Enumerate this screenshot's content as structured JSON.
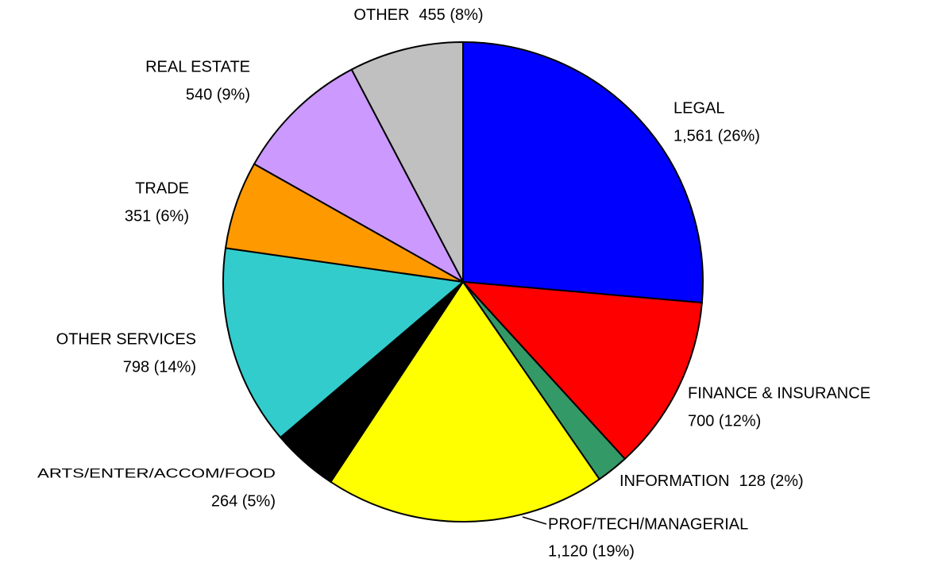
{
  "chart_data": {
    "type": "pie",
    "categories": [
      "LEGAL",
      "FINANCE & INSURANCE",
      "INFORMATION",
      "PROF/TECH/MANAGERIAL",
      "ARTS/ENTER/ACCOM/FOOD",
      "OTHER SERVICES",
      "TRADE",
      "REAL ESTATE",
      "OTHER"
    ],
    "values": [
      1561,
      700,
      128,
      1120,
      264,
      798,
      351,
      540,
      455
    ],
    "value_labels": [
      "1,561 (26%)",
      "700 (12%)",
      "128 (2%)",
      "1,120 (19%)",
      "264 (5%)",
      "798 (14%)",
      "351 (6%)",
      "540 (9%)",
      "455 (8%)"
    ],
    "colors": [
      "#0000ff",
      "#ff0000",
      "#339966",
      "#ffff00",
      "#000000",
      "#33cccc",
      "#ff9900",
      "#cc99ff",
      "#c0c0c0"
    ]
  }
}
